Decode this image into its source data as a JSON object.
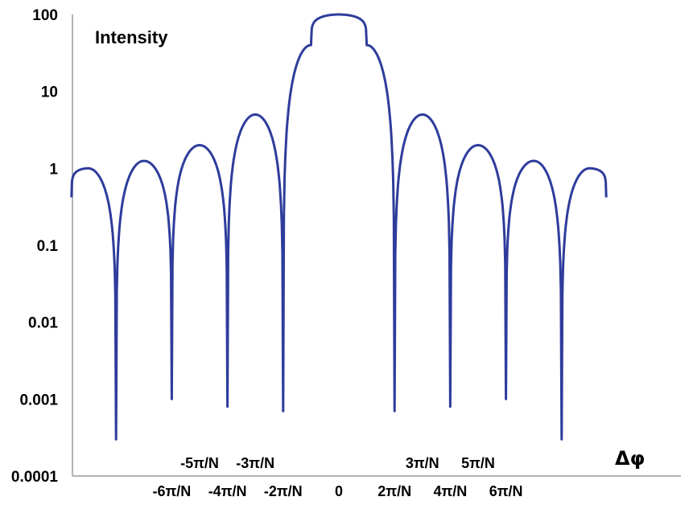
{
  "chart_data": {
    "type": "line",
    "ylabel": "Intensity",
    "xlabel": "Δφ",
    "yscale": "log",
    "ylim": [
      0.0001,
      100
    ],
    "grid": false,
    "y_ticks": [
      "100",
      "10",
      "1",
      "0.1",
      "0.01",
      "0.001",
      "0.0001"
    ],
    "x_ticks_upper": [
      "-5π/N",
      "-3π/N",
      "3π/N",
      "5π/N"
    ],
    "x_ticks_lower": [
      "-6π/N",
      "-4π/N",
      "-2π/N",
      "0",
      "2π/N",
      "4π/N",
      "6π/N"
    ],
    "series": [
      {
        "color": "#2e3c9c",
        "x_unit": "π/N",
        "x": [
          -9.6,
          -9,
          -8,
          -7,
          -6,
          -5,
          -4,
          -3,
          -2,
          -1,
          0,
          1,
          2,
          3,
          4,
          5,
          6,
          7,
          8,
          9,
          9.6
        ],
        "y": [
          0.42,
          1.0,
          0.0003,
          1.25,
          0.001,
          2.0,
          0.0008,
          5.0,
          0.0007,
          40,
          100,
          40,
          0.0007,
          5.0,
          0.0008,
          2.0,
          0.001,
          1.25,
          0.0003,
          1.0,
          0.42
        ]
      }
    ]
  }
}
